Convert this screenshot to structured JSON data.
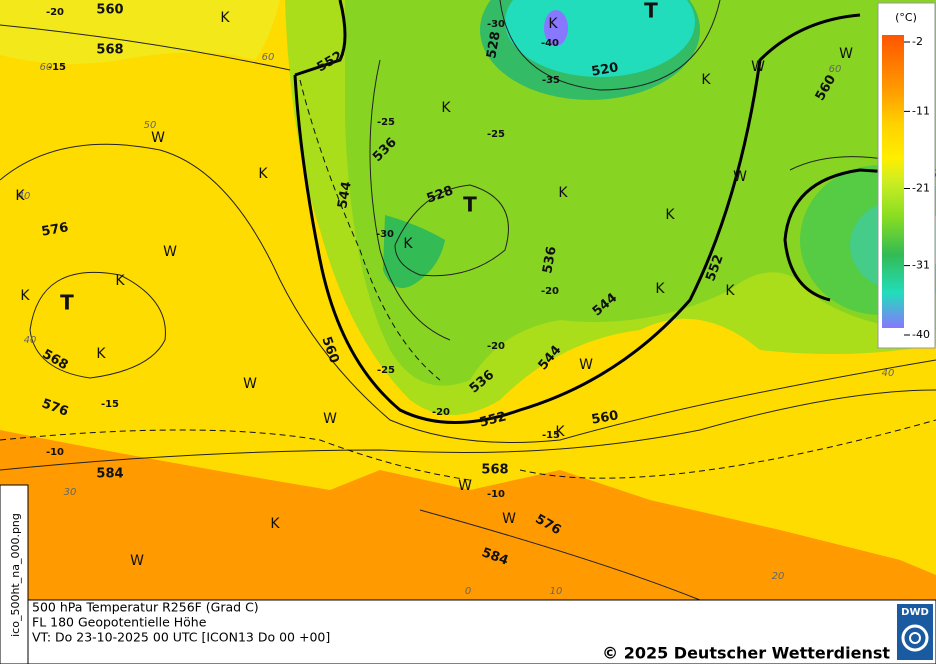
{
  "legend": {
    "unit": "(°C)",
    "ticks": [
      -2,
      -11,
      -21,
      -31,
      -40
    ]
  },
  "height_labels": [
    "560",
    "568",
    "552",
    "536",
    "544",
    "528",
    "528",
    "520",
    "560",
    "576",
    "568",
    "576",
    "584",
    "560",
    "552",
    "560",
    "568",
    "576",
    "584",
    "536",
    "544",
    "544",
    "536",
    "552"
  ],
  "temperature_labels": [
    "-20",
    "-15",
    "-25",
    "-25",
    "-30",
    "-35",
    "-40",
    "-30",
    "-20",
    "-20",
    "-25",
    "-20",
    "-15",
    "-10",
    "-15",
    "-10"
  ],
  "grid_labels": [
    "60",
    "60",
    "50",
    "40",
    "40",
    "30",
    "40",
    "60",
    "0",
    "20",
    "10"
  ],
  "air_mass_labels": [
    "K",
    "K",
    "K",
    "K",
    "K",
    "K",
    "K",
    "K",
    "K",
    "K",
    "K",
    "K",
    "K",
    "K",
    "K",
    "K",
    "W",
    "W",
    "W",
    "W",
    "W",
    "W",
    "W",
    "W",
    "W",
    "W",
    "W",
    "T",
    "T",
    "T"
  ],
  "footer": {
    "line1": "500 hPa Temperatur R256F (Grad C)",
    "line2": "FL 180 Geopotentielle Höhe",
    "line3": "VT: Do 23-10-2025 00 UTC [ICON13 Do 00 +00]",
    "copyright": "© 2025 Deutscher Wetterdienst",
    "logo": "DWD",
    "filename": "ico_500ht_na_000.png"
  }
}
